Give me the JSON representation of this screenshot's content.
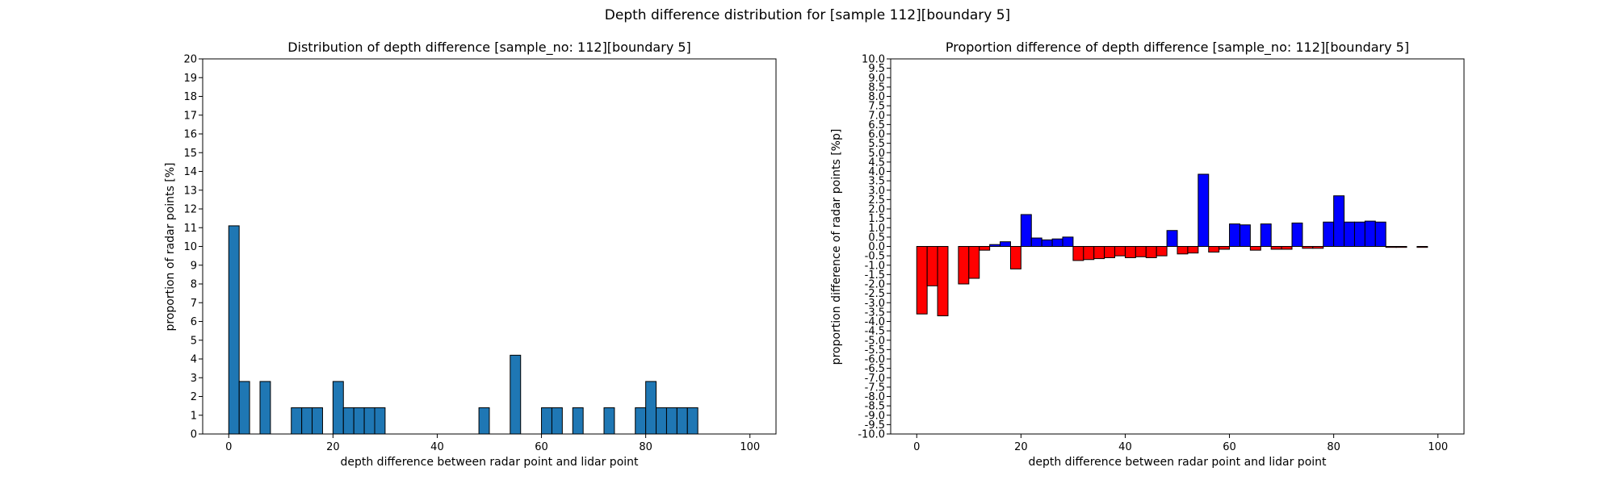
{
  "figure": {
    "title": "Depth difference distribution for [sample 112][boundary 5]"
  },
  "chart_data": [
    {
      "type": "bar",
      "title": "Distribution of depth difference [sample_no: 112][boundary 5]",
      "xlabel": "depth difference between radar point and lidar point",
      "ylabel": "proportion of radar points [%]",
      "xlim": [
        -5,
        105
      ],
      "ylim": [
        0,
        20
      ],
      "xticks": [
        0,
        20,
        40,
        60,
        80,
        100
      ],
      "yticks": [
        0,
        1,
        2,
        3,
        4,
        5,
        6,
        7,
        8,
        9,
        10,
        11,
        12,
        13,
        14,
        15,
        16,
        17,
        18,
        19,
        20
      ],
      "bar_width": 2,
      "bar_color": "#1f77b4",
      "edge_color": "#000000",
      "x": [
        0,
        2,
        4,
        6,
        8,
        10,
        12,
        14,
        16,
        18,
        20,
        22,
        24,
        26,
        28,
        30,
        32,
        34,
        36,
        38,
        40,
        42,
        44,
        46,
        48,
        50,
        52,
        54,
        56,
        58,
        60,
        62,
        64,
        66,
        68,
        70,
        72,
        74,
        76,
        78,
        80,
        82,
        84,
        86,
        88,
        90,
        92,
        94,
        96,
        98
      ],
      "values": [
        11.1,
        2.8,
        0,
        2.8,
        0,
        0,
        1.4,
        1.4,
        1.4,
        0,
        2.8,
        1.4,
        1.4,
        1.4,
        1.4,
        0,
        0,
        0,
        0,
        0,
        0,
        0,
        0,
        0,
        1.4,
        0,
        0,
        4.2,
        0,
        0,
        1.4,
        1.4,
        0,
        1.4,
        0,
        0,
        1.4,
        0,
        0,
        1.4,
        2.8,
        1.4,
        1.4,
        1.4,
        1.4,
        0,
        0,
        0,
        0,
        0
      ]
    },
    {
      "type": "bar",
      "title": "Proportion difference of depth difference [sample_no: 112][boundary 5]",
      "xlabel": "depth difference between radar point and lidar point",
      "ylabel": "proportion difference of radar points [%p]",
      "xlim": [
        -5,
        105
      ],
      "ylim": [
        -10,
        10
      ],
      "xticks": [
        0,
        20,
        40,
        60,
        80,
        100
      ],
      "yticks": [
        -10,
        -9.5,
        -9,
        -8.5,
        -8,
        -7.5,
        -7,
        -6.5,
        -6,
        -5.5,
        -5,
        -4.5,
        -4,
        -3.5,
        -3,
        -2.5,
        -2,
        -1.5,
        -1,
        -0.5,
        0,
        0.5,
        1,
        1.5,
        2,
        2.5,
        3,
        3.5,
        4,
        4.5,
        5,
        5.5,
        6,
        6.5,
        7,
        7.5,
        8,
        8.5,
        9,
        9.5,
        10
      ],
      "bar_width": 2,
      "positive_color": "#0000ff",
      "negative_color": "#ff0000",
      "edge_color": "#000000",
      "x": [
        0,
        2,
        4,
        6,
        8,
        10,
        12,
        14,
        16,
        18,
        20,
        22,
        24,
        26,
        28,
        30,
        32,
        34,
        36,
        38,
        40,
        42,
        44,
        46,
        48,
        50,
        52,
        54,
        56,
        58,
        60,
        62,
        64,
        66,
        68,
        70,
        72,
        74,
        76,
        78,
        80,
        82,
        84,
        86,
        88,
        90,
        92,
        94,
        96,
        98
      ],
      "values": [
        -3.6,
        -2.1,
        -3.7,
        0,
        -2.0,
        -1.7,
        -0.2,
        0.1,
        0.25,
        -1.2,
        1.7,
        0.45,
        0.35,
        0.4,
        0.5,
        -0.75,
        -0.7,
        -0.65,
        -0.6,
        -0.5,
        -0.6,
        -0.55,
        -0.6,
        -0.5,
        0.85,
        -0.4,
        -0.35,
        3.85,
        -0.3,
        -0.15,
        1.2,
        1.15,
        -0.2,
        1.2,
        -0.15,
        -0.15,
        1.25,
        -0.1,
        -0.1,
        1.3,
        2.7,
        1.3,
        1.3,
        1.35,
        1.3,
        -0.05,
        -0.05,
        0,
        -0.05,
        0
      ]
    }
  ]
}
